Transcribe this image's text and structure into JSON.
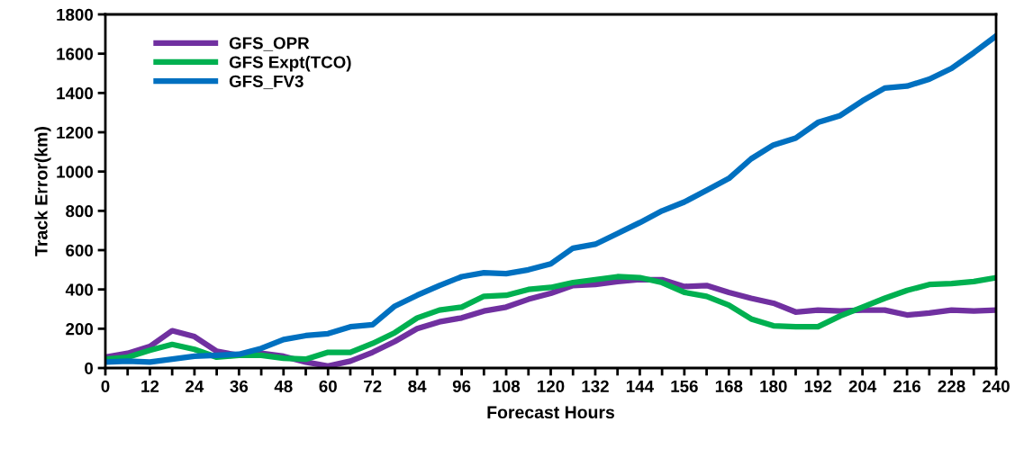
{
  "chart_data": {
    "type": "line",
    "xlabel": "Forecast Hours",
    "ylabel": "Track Error(km)",
    "x": [
      0,
      6,
      12,
      18,
      24,
      30,
      36,
      42,
      48,
      54,
      60,
      66,
      72,
      78,
      84,
      90,
      96,
      102,
      108,
      114,
      120,
      126,
      132,
      138,
      144,
      150,
      156,
      162,
      168,
      174,
      180,
      186,
      192,
      198,
      204,
      210,
      216,
      222,
      228,
      234,
      240
    ],
    "series": [
      {
        "name": "GFS_OPR",
        "color": "#7030a0",
        "values": [
          55,
          75,
          110,
          190,
          160,
          85,
          65,
          75,
          60,
          30,
          10,
          35,
          80,
          135,
          200,
          235,
          255,
          290,
          310,
          350,
          380,
          420,
          425,
          440,
          450,
          450,
          415,
          420,
          385,
          355,
          330,
          285,
          295,
          290,
          295,
          295,
          270,
          280,
          295,
          290,
          295
        ]
      },
      {
        "name": "GFS Expt(TCO)",
        "color": "#00b050",
        "values": [
          45,
          55,
          90,
          120,
          95,
          55,
          65,
          65,
          50,
          45,
          80,
          80,
          125,
          180,
          255,
          295,
          310,
          365,
          370,
          400,
          410,
          435,
          450,
          465,
          460,
          435,
          385,
          365,
          320,
          250,
          215,
          210,
          210,
          265,
          310,
          355,
          395,
          425,
          430,
          440,
          460
        ]
      },
      {
        "name": "GFS_FV3",
        "color": "#0070c0",
        "values": [
          30,
          35,
          30,
          45,
          60,
          65,
          70,
          100,
          145,
          165,
          175,
          210,
          220,
          315,
          370,
          420,
          465,
          485,
          480,
          500,
          530,
          610,
          630,
          685,
          740,
          800,
          845,
          905,
          965,
          1065,
          1135,
          1170,
          1250,
          1285,
          1360,
          1425,
          1435,
          1470,
          1525,
          1605,
          1690
        ]
      }
    ],
    "xlim": [
      0,
      240
    ],
    "xticks": [
      0,
      {
        "value": 6,
        "label": null
      },
      12,
      {
        "value": 18,
        "label": null
      },
      24,
      {
        "value": 30,
        "label": null
      },
      36,
      {
        "value": 42,
        "label": null
      },
      48,
      {
        "value": 54,
        "label": null
      },
      60,
      {
        "value": 66,
        "label": null
      },
      72,
      {
        "value": 78,
        "label": null
      },
      84,
      {
        "value": 90,
        "label": null
      },
      96,
      {
        "value": 102,
        "label": null
      },
      108,
      {
        "value": 114,
        "label": null
      },
      120,
      {
        "value": 126,
        "label": null
      },
      132,
      {
        "value": 138,
        "label": null
      },
      144,
      {
        "value": 150,
        "label": null
      },
      156,
      {
        "value": 162,
        "label": null
      },
      168,
      {
        "value": 174,
        "label": null
      },
      180,
      {
        "value": 186,
        "label": null
      },
      192,
      {
        "value": 198,
        "label": null
      },
      204,
      {
        "value": 210,
        "label": null
      },
      216,
      {
        "value": 222,
        "label": null
      },
      228,
      {
        "value": 234,
        "label": null
      },
      240
    ],
    "ylim": [
      0,
      1800
    ],
    "yticks": [
      0,
      200,
      400,
      600,
      800,
      1000,
      1200,
      1400,
      1600,
      1800
    ],
    "grid": false,
    "legend": "top left",
    "marker": "none",
    "line_style": "solid"
  }
}
